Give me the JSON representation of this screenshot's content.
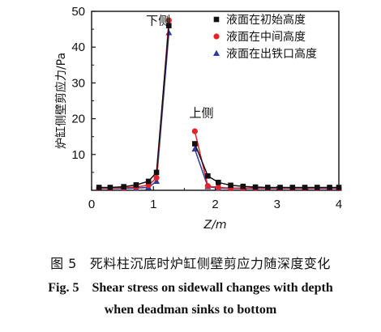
{
  "chart_data": {
    "type": "line",
    "xlabel": "Z/m",
    "ylabel": "炉缸侧壁剪应力/Pa",
    "xlim": [
      0,
      4
    ],
    "ylim": [
      0,
      50
    ],
    "xticks": [
      0,
      1,
      2,
      3,
      4
    ],
    "yticks": [
      10,
      20,
      30,
      40,
      50
    ],
    "legend_position": "top-right",
    "annotations": [
      {
        "text": "下侧"
      },
      {
        "text": "上侧"
      }
    ],
    "series": [
      {
        "name": "液面在初始高度",
        "marker": "square",
        "color": "#111111",
        "segments": [
          [
            [
              0.12,
              0.8
            ],
            [
              0.3,
              0.8
            ],
            [
              0.52,
              1.0
            ],
            [
              0.72,
              1.5
            ],
            [
              0.92,
              2.5
            ],
            [
              1.05,
              5.0
            ],
            [
              1.25,
              46.0
            ]
          ],
          [
            [
              1.67,
              13.0
            ],
            [
              1.88,
              4.0
            ],
            [
              2.05,
              2.2
            ],
            [
              2.25,
              1.4
            ],
            [
              2.45,
              1.1
            ],
            [
              2.65,
              0.9
            ],
            [
              2.85,
              0.8
            ],
            [
              3.05,
              0.8
            ],
            [
              3.25,
              0.8
            ],
            [
              3.45,
              0.8
            ],
            [
              3.65,
              0.8
            ],
            [
              3.85,
              0.8
            ],
            [
              4.0,
              0.8
            ]
          ]
        ]
      },
      {
        "name": "液面在中间高度",
        "marker": "circle",
        "color": "#e0242a",
        "segments": [
          [
            [
              0.12,
              0.6
            ],
            [
              0.3,
              0.6
            ],
            [
              0.52,
              0.7
            ],
            [
              0.72,
              0.9
            ],
            [
              0.92,
              1.4
            ],
            [
              1.05,
              3.5
            ],
            [
              1.25,
              47.5
            ]
          ],
          [
            [
              1.67,
              16.5
            ],
            [
              1.88,
              1.2
            ],
            [
              2.05,
              0.8
            ],
            [
              2.25,
              0.6
            ],
            [
              2.45,
              0.6
            ],
            [
              2.65,
              0.6
            ],
            [
              2.85,
              0.6
            ],
            [
              3.05,
              0.6
            ],
            [
              3.25,
              0.6
            ],
            [
              3.45,
              0.6
            ],
            [
              3.65,
              0.6
            ],
            [
              3.85,
              0.6
            ],
            [
              4.0,
              0.6
            ]
          ]
        ]
      },
      {
        "name": "液面在出铁口高度",
        "marker": "triangle",
        "color": "#2f3a9c",
        "segments": [
          [
            [
              0.12,
              0.5
            ],
            [
              0.3,
              0.5
            ],
            [
              0.52,
              0.5
            ],
            [
              0.72,
              0.6
            ],
            [
              0.92,
              0.8
            ],
            [
              1.05,
              2.5
            ],
            [
              1.25,
              44.0
            ]
          ],
          [
            [
              1.67,
              11.5
            ],
            [
              1.88,
              1.0
            ],
            [
              2.05,
              0.6
            ],
            [
              2.25,
              0.5
            ],
            [
              2.45,
              0.5
            ],
            [
              2.65,
              0.5
            ],
            [
              2.85,
              0.5
            ],
            [
              3.05,
              0.5
            ],
            [
              3.25,
              0.5
            ],
            [
              3.45,
              0.5
            ],
            [
              3.65,
              0.5
            ],
            [
              3.85,
              0.5
            ],
            [
              4.0,
              0.5
            ]
          ]
        ]
      }
    ]
  },
  "caption": {
    "cn_label": "图 5",
    "cn_text": "死料柱沉底时炉缸侧壁剪应力随深度变化",
    "en_label": "Fig. 5",
    "en_text": "Shear stress on sidewall changes with depth",
    "en_text2": "when deadman sinks to bottom"
  }
}
